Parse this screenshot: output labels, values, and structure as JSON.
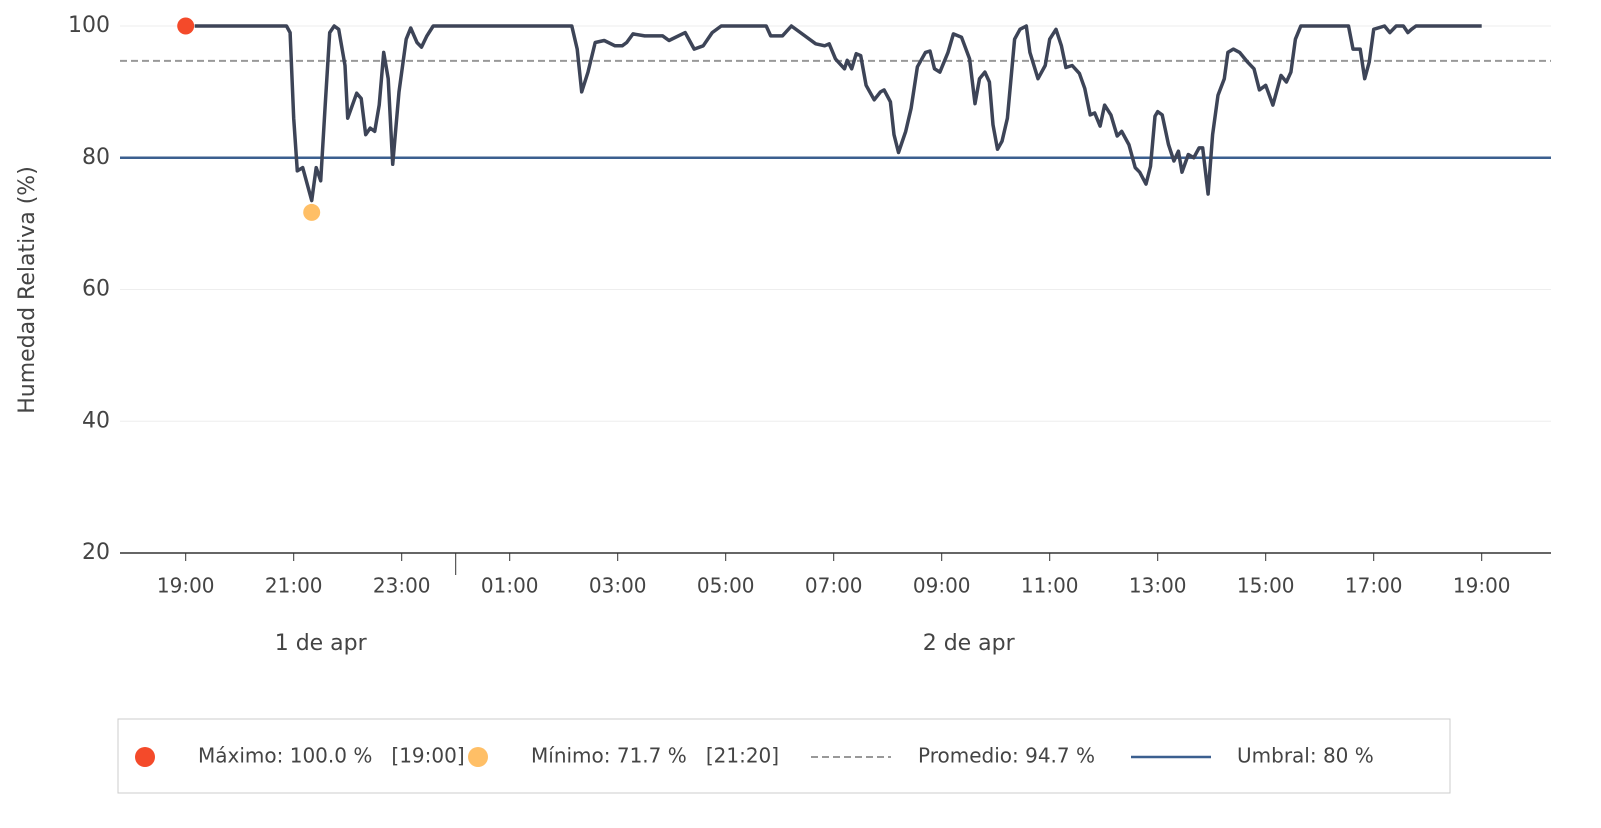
{
  "chart_data": {
    "type": "line",
    "y_label": "Humedad Relativa (%)",
    "ylim": [
      20,
      100
    ],
    "yticks": [
      20,
      40,
      60,
      80,
      100
    ],
    "grid": true,
    "xlim": [
      "04-01 17:47",
      "04-02 20:17"
    ],
    "xticks": [
      {
        "value": "04-01 19:00",
        "label": "19:00"
      },
      {
        "value": "04-01 21:00",
        "label": "21:00"
      },
      {
        "value": "04-01 23:00",
        "label": "23:00"
      },
      {
        "value": "04-02 01:00",
        "label": "01:00"
      },
      {
        "value": "04-02 03:00",
        "label": "03:00"
      },
      {
        "value": "04-02 05:00",
        "label": "05:00"
      },
      {
        "value": "04-02 07:00",
        "label": "07:00"
      },
      {
        "value": "04-02 09:00",
        "label": "09:00"
      },
      {
        "value": "04-02 11:00",
        "label": "11:00"
      },
      {
        "value": "04-02 13:00",
        "label": "13:00"
      },
      {
        "value": "04-02 15:00",
        "label": "15:00"
      },
      {
        "value": "04-02 17:00",
        "label": "17:00"
      },
      {
        "value": "04-02 19:00",
        "label": "19:00"
      }
    ],
    "day_labels": [
      {
        "day": "04-01",
        "label": "1 de apr"
      },
      {
        "day": "04-02",
        "label": "2 de apr"
      }
    ],
    "day_separators": [
      "04-02 00:00"
    ],
    "x": [
      "04-01 19:10",
      "04-01 20:52",
      "04-01 20:56",
      "04-01 21:00",
      "04-01 21:04",
      "04-01 21:10",
      "04-01 21:15",
      "04-01 21:20",
      "04-01 21:25",
      "04-01 21:30",
      "04-01 21:35",
      "04-01 21:40",
      "04-01 21:45",
      "04-01 21:50",
      "04-01 21:57",
      "04-01 22:00",
      "04-01 22:10",
      "04-01 22:15",
      "04-01 22:20",
      "04-01 22:25",
      "04-01 22:30",
      "04-01 22:35",
      "04-01 22:40",
      "04-01 22:45",
      "04-01 22:50",
      "04-01 22:57",
      "04-01 23:05",
      "04-01 23:10",
      "04-01 23:17",
      "04-01 23:22",
      "04-01 23:28",
      "04-01 23:35",
      "04-02 02:09",
      "04-02 02:15",
      "04-02 02:20",
      "04-02 02:27",
      "04-02 02:35",
      "04-02 02:45",
      "04-02 02:57",
      "04-02 03:05",
      "04-02 03:10",
      "04-02 03:17",
      "04-02 03:30",
      "04-02 03:50",
      "04-02 03:57",
      "04-02 04:15",
      "04-02 04:25",
      "04-02 04:35",
      "04-02 04:45",
      "04-02 04:55",
      "04-02 05:45",
      "04-02 05:50",
      "04-02 06:03",
      "04-02 06:13",
      "04-02 06:28",
      "04-02 06:40",
      "04-02 06:50",
      "04-02 06:55",
      "04-02 07:02",
      "04-02 07:12",
      "04-02 07:15",
      "04-02 07:20",
      "04-02 07:25",
      "04-02 07:30",
      "04-02 07:36",
      "04-02 07:45",
      "04-02 07:52",
      "04-02 07:56",
      "04-02 08:03",
      "04-02 08:07",
      "04-02 08:12",
      "04-02 08:20",
      "04-02 08:26",
      "04-02 08:33",
      "04-02 08:42",
      "04-02 08:47",
      "04-02 08:52",
      "04-02 08:58",
      "04-02 09:07",
      "04-02 09:13",
      "04-02 09:22",
      "04-02 09:31",
      "04-02 09:37",
      "04-02 09:42",
      "04-02 09:48",
      "04-02 09:53",
      "04-02 09:57",
      "04-02 10:02",
      "04-02 10:07",
      "04-02 10:13",
      "04-02 10:21",
      "04-02 10:27",
      "04-02 10:34",
      "04-02 10:38",
      "04-02 10:47",
      "04-02 10:55",
      "04-02 11:00",
      "04-02 11:07",
      "04-02 11:13",
      "04-02 11:18",
      "04-02 11:25",
      "04-02 11:33",
      "04-02 11:39",
      "04-02 11:45",
      "04-02 11:50",
      "04-02 11:56",
      "04-02 12:01",
      "04-02 12:08",
      "04-02 12:15",
      "04-02 12:20",
      "04-02 12:28",
      "04-02 12:35",
      "04-02 12:40",
      "04-02 12:47",
      "04-02 12:52",
      "04-02 12:57",
      "04-02 13:00",
      "04-02 13:05",
      "04-02 13:12",
      "04-02 13:18",
      "04-02 13:23",
      "04-02 13:27",
      "04-02 13:34",
      "04-02 13:40",
      "04-02 13:46",
      "04-02 13:50",
      "04-02 13:56",
      "04-02 14:01",
      "04-02 14:07",
      "04-02 14:14",
      "04-02 14:18",
      "04-02 14:24",
      "04-02 14:31",
      "04-02 14:40",
      "04-02 14:47",
      "04-02 14:53",
      "04-02 15:00",
      "04-02 15:08",
      "04-02 15:17",
      "04-02 15:23",
      "04-02 15:28",
      "04-02 15:33",
      "04-02 15:39",
      "04-02 16:32",
      "04-02 16:37",
      "04-02 16:45",
      "04-02 16:50",
      "04-02 16:55",
      "04-02 17:00",
      "04-02 17:12",
      "04-02 17:18",
      "04-02 17:25",
      "04-02 17:33",
      "04-02 17:38",
      "04-02 17:42",
      "04-02 17:47",
      "04-02 19:00"
    ],
    "series": [
      {
        "color": "#3d4457",
        "values": [
          100,
          100,
          99,
          86,
          78,
          78.5,
          76,
          73.5,
          78.5,
          76.5,
          88,
          99,
          100,
          99.5,
          94,
          86,
          89.8,
          89,
          83.5,
          84.5,
          84,
          88,
          96,
          92,
          79,
          90,
          98,
          99.7,
          97.5,
          96.8,
          98.5,
          100,
          100,
          96.5,
          90,
          93,
          97.5,
          97.8,
          97,
          97,
          97.5,
          98.8,
          98.5,
          98.5,
          97.8,
          99,
          96.5,
          97,
          99,
          100,
          100,
          98.5,
          98.5,
          100,
          98.5,
          97.3,
          97,
          97.3,
          95,
          93.5,
          94.8,
          93.5,
          95.8,
          95.5,
          91,
          88.8,
          90,
          90.3,
          88.5,
          83.5,
          80.8,
          84,
          87.5,
          93.8,
          96,
          96.2,
          93.5,
          93,
          96,
          98.8,
          98.3,
          95,
          88.2,
          92,
          93,
          91.5,
          85,
          81.3,
          82.5,
          86,
          98,
          99.5,
          100,
          96,
          92,
          94,
          98,
          99.5,
          97,
          93.7,
          94,
          92.8,
          90.5,
          86.5,
          86.8,
          84.8,
          88,
          86.5,
          83.3,
          84,
          82,
          78.5,
          77.8,
          76,
          78.7,
          86.3,
          87,
          86.5,
          82,
          79.5,
          81,
          77.8,
          80.5,
          80,
          81.5,
          81.5,
          74.5,
          83.5,
          89.5,
          92,
          96,
          96.5,
          96,
          94.5,
          93.5,
          90.3,
          91,
          88,
          92.5,
          91.5,
          93,
          98,
          100,
          100,
          96.5,
          96.5,
          92,
          94.5,
          99.5,
          100,
          99,
          100,
          100,
          99,
          99.5,
          100,
          100
        ]
      }
    ],
    "max": {
      "x": "04-01 19:00",
      "value": 100,
      "color": "#f44a2a",
      "label": "Máximo: 100.0 %   [19:00]"
    },
    "min": {
      "x": "04-01 21:20",
      "value": 71.7,
      "color": "#ffbf66",
      "label": "Mínimo: 71.7 %   [21:20]"
    },
    "mean": {
      "value": 94.7,
      "color": "#999999",
      "label": "Promedio: 94.7 %"
    },
    "threshold": {
      "value": 80,
      "color": "#3b5f8f",
      "label": "Umbral: 80 %"
    }
  }
}
